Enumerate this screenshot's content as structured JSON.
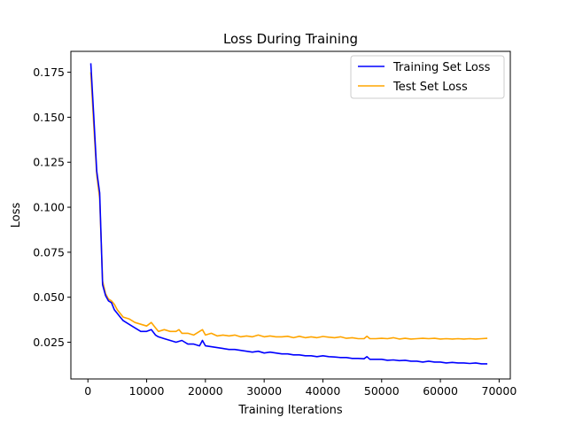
{
  "chart_data": {
    "type": "line",
    "title": "Loss During Training",
    "xlabel": "Training Iterations",
    "ylabel": "Loss",
    "xlim": [
      -2900,
      71900
    ],
    "ylim": [
      0.0046,
      0.1866
    ],
    "xticks": [
      0,
      10000,
      20000,
      30000,
      40000,
      50000,
      60000,
      70000
    ],
    "yticks": [
      0.025,
      0.05,
      0.075,
      0.1,
      0.125,
      0.15,
      0.175
    ],
    "xtick_labels": [
      "0",
      "10000",
      "20000",
      "30000",
      "40000",
      "50000",
      "60000",
      "70000"
    ],
    "ytick_labels": [
      "0.025",
      "0.050",
      "0.075",
      "0.100",
      "0.125",
      "0.150",
      "0.175"
    ],
    "grid": false,
    "legend_position": "top-right",
    "series": [
      {
        "name": "Training Set Loss",
        "color": "#0000ff",
        "x": [
          500,
          1000,
          1500,
          2000,
          2500,
          3000,
          3500,
          4000,
          4500,
          5000,
          5500,
          6000,
          7000,
          8000,
          9000,
          10000,
          10800,
          11500,
          12000,
          13000,
          14000,
          15000,
          16000,
          17000,
          18000,
          19000,
          19500,
          20000,
          21000,
          22000,
          23000,
          24000,
          25000,
          26000,
          27000,
          28000,
          29000,
          30000,
          31000,
          32000,
          33000,
          34000,
          35000,
          36000,
          37000,
          38000,
          39000,
          40000,
          41000,
          42000,
          43000,
          44000,
          45000,
          46000,
          47000,
          47500,
          48000,
          49000,
          50000,
          51000,
          52000,
          53000,
          54000,
          55000,
          56000,
          57000,
          58000,
          59000,
          60000,
          61000,
          62000,
          63000,
          64000,
          65000,
          66000,
          67000,
          68000
        ],
        "values": [
          0.18,
          0.15,
          0.12,
          0.108,
          0.057,
          0.051,
          0.048,
          0.047,
          0.043,
          0.041,
          0.039,
          0.037,
          0.035,
          0.033,
          0.031,
          0.031,
          0.032,
          0.029,
          0.028,
          0.027,
          0.026,
          0.025,
          0.026,
          0.024,
          0.024,
          0.023,
          0.026,
          0.023,
          0.0225,
          0.022,
          0.0215,
          0.021,
          0.021,
          0.0205,
          0.02,
          0.0195,
          0.02,
          0.019,
          0.0195,
          0.019,
          0.0185,
          0.0185,
          0.018,
          0.018,
          0.0175,
          0.0175,
          0.017,
          0.0175,
          0.017,
          0.0168,
          0.0165,
          0.0165,
          0.016,
          0.016,
          0.0158,
          0.017,
          0.0155,
          0.0155,
          0.0155,
          0.015,
          0.0152,
          0.0148,
          0.015,
          0.0145,
          0.0145,
          0.014,
          0.0145,
          0.014,
          0.014,
          0.0135,
          0.0138,
          0.0135,
          0.0135,
          0.0132,
          0.0135,
          0.013,
          0.013
        ]
      },
      {
        "name": "Test Set Loss",
        "color": "#ffa500",
        "x": [
          500,
          1000,
          1500,
          2000,
          2500,
          3000,
          3500,
          4000,
          4500,
          5000,
          5500,
          6000,
          7000,
          8000,
          9000,
          10000,
          10800,
          11500,
          12000,
          13000,
          14000,
          15000,
          15500,
          16000,
          17000,
          18000,
          19000,
          19500,
          20000,
          21000,
          22000,
          23000,
          24000,
          25000,
          26000,
          27000,
          28000,
          29000,
          30000,
          31000,
          32000,
          33000,
          34000,
          35000,
          36000,
          37000,
          38000,
          39000,
          40000,
          41000,
          42000,
          43000,
          44000,
          45000,
          46000,
          47000,
          47500,
          48000,
          49000,
          50000,
          51000,
          52000,
          53000,
          54000,
          55000,
          56000,
          57000,
          58000,
          59000,
          60000,
          61000,
          62000,
          63000,
          64000,
          65000,
          66000,
          67000,
          68000
        ],
        "values": [
          0.175,
          0.145,
          0.118,
          0.105,
          0.059,
          0.052,
          0.049,
          0.048,
          0.046,
          0.043,
          0.041,
          0.039,
          0.038,
          0.036,
          0.035,
          0.034,
          0.036,
          0.033,
          0.031,
          0.032,
          0.031,
          0.031,
          0.032,
          0.03,
          0.03,
          0.029,
          0.031,
          0.032,
          0.029,
          0.03,
          0.0285,
          0.029,
          0.0285,
          0.029,
          0.028,
          0.0285,
          0.028,
          0.029,
          0.028,
          0.0285,
          0.028,
          0.028,
          0.0283,
          0.0275,
          0.0283,
          0.0275,
          0.028,
          0.0275,
          0.0282,
          0.0278,
          0.0275,
          0.028,
          0.0272,
          0.0275,
          0.027,
          0.027,
          0.0283,
          0.027,
          0.027,
          0.0272,
          0.027,
          0.0275,
          0.0268,
          0.0272,
          0.0268,
          0.027,
          0.0272,
          0.027,
          0.0272,
          0.0268,
          0.027,
          0.0268,
          0.027,
          0.0268,
          0.027,
          0.0268,
          0.027,
          0.0272
        ]
      }
    ]
  }
}
